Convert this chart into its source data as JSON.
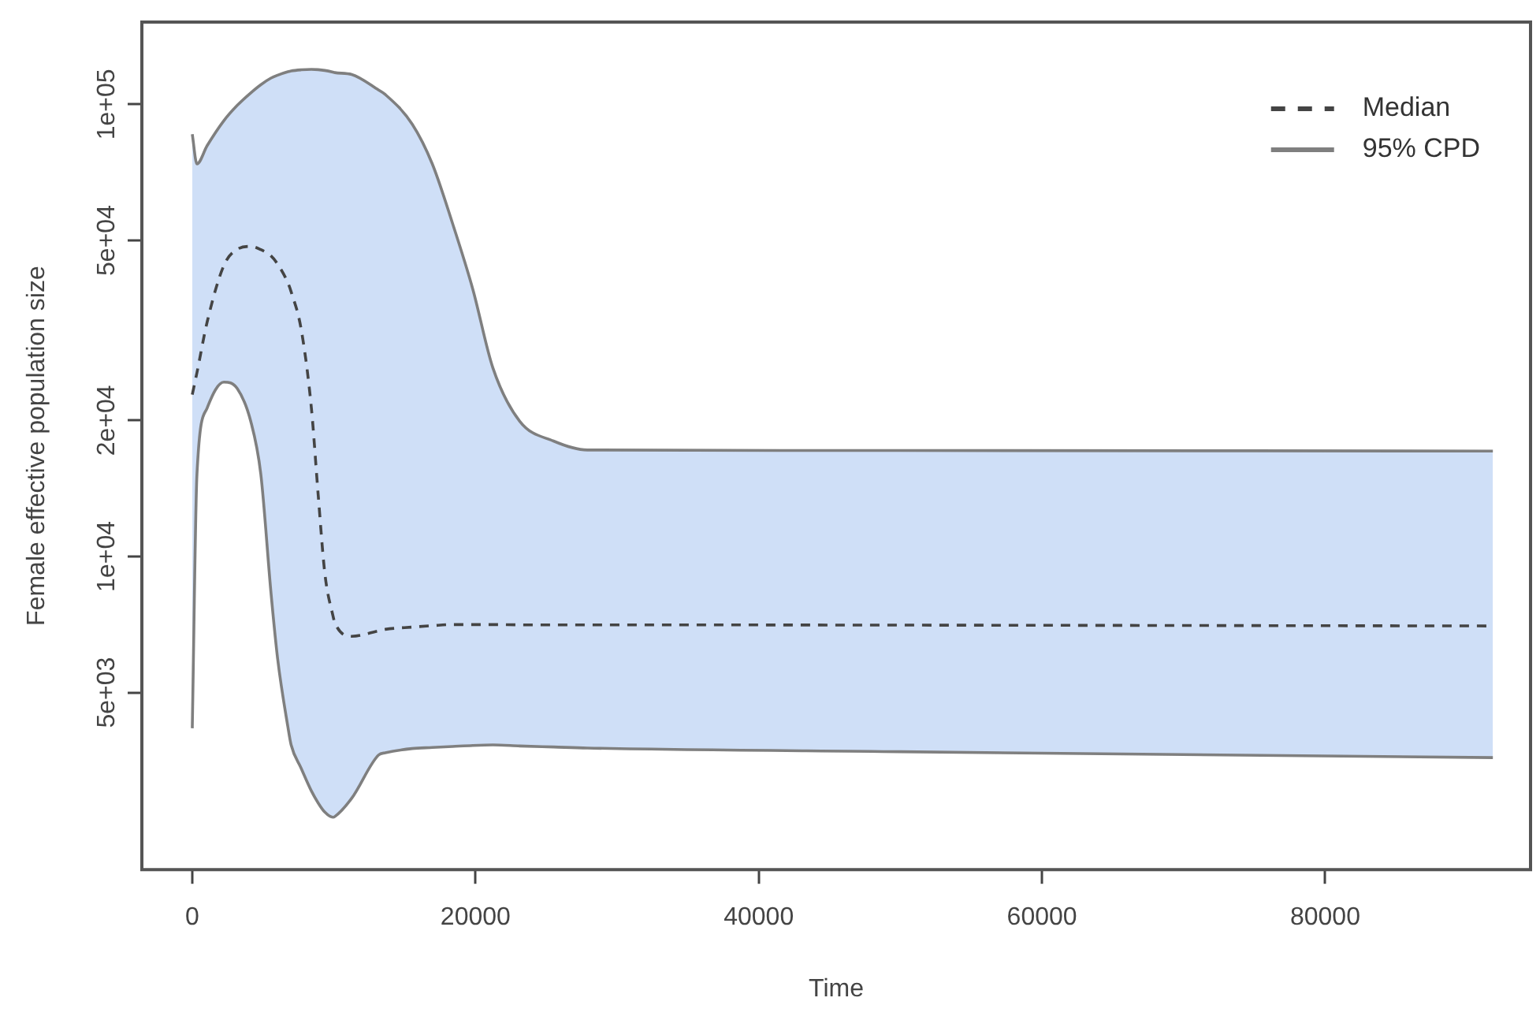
{
  "chart_data": {
    "type": "line",
    "xlabel": "Time",
    "ylabel": "Female effective population size",
    "log": "y",
    "grid": false,
    "legend": "top right",
    "xlim": [
      -3560,
      94500
    ],
    "xticks": [
      0,
      20000,
      40000,
      60000,
      80000
    ],
    "ylim": [
      2030,
      152000
    ],
    "yticks": [
      {
        "value": 5000,
        "label": "5e+03"
      },
      {
        "value": 10000,
        "label": "1e+04"
      },
      {
        "value": 20000,
        "label": "2e+04"
      },
      {
        "value": 50000,
        "label": "5e+04"
      },
      {
        "value": 100000,
        "label": "1e+05"
      }
    ],
    "series": [
      {
        "name": "Median",
        "line_style": "dashed",
        "color": "#444444",
        "x": [
          0,
          330,
          1050,
          2230,
          3180,
          4130,
          4840,
          5560,
          6030,
          6750,
          6980,
          7690,
          8410,
          8890,
          9360,
          9930,
          10070,
          11260,
          13160,
          13630,
          15530,
          16950,
          18380,
          19810,
          21230,
          23130,
          25510,
          27890,
          50000,
          91840
        ],
        "values": [
          22800,
          25500,
          33000,
          44000,
          47800,
          48500,
          47700,
          46200,
          44300,
          40300,
          38500,
          31800,
          21300,
          13700,
          9180,
          7400,
          7130,
          6660,
          6850,
          6900,
          6980,
          7030,
          7070,
          7070,
          7070,
          7060,
          7060,
          7060,
          7050,
          7020
        ],
        "upper": [
          85900,
          73800,
          81000,
          92000,
          99500,
          106000,
          110500,
          114300,
          116000,
          118000,
          118500,
          119200,
          119500,
          119300,
          118800,
          117800,
          117500,
          116400,
          107500,
          105100,
          90400,
          73800,
          54500,
          39000,
          26100,
          19900,
          18000,
          17200,
          17150,
          17100
        ],
        "lower": [
          4170,
          15200,
          21300,
          24300,
          23500,
          19900,
          15200,
          8300,
          5930,
          4200,
          3830,
          3400,
          3030,
          2850,
          2720,
          2650,
          2660,
          2920,
          3640,
          3680,
          3760,
          3780,
          3800,
          3820,
          3830,
          3810,
          3790,
          3770,
          3700,
          3590
        ]
      },
      {
        "name": "95% CPD",
        "line_style": "solid",
        "color": "#7f7f7f",
        "x": [
          0,
          330,
          1050,
          2230,
          3180,
          4130,
          4840,
          5560,
          6030,
          6750,
          6980,
          7690,
          8410,
          8890,
          9360,
          9930,
          10070,
          11260,
          13160,
          13630,
          15530,
          16950,
          18380,
          19810,
          21230,
          23130,
          25510,
          27890,
          50000,
          91840
        ],
        "values": [
          85900,
          73800,
          81000,
          92000,
          99500,
          106000,
          110500,
          114300,
          116000,
          118000,
          118500,
          119200,
          119500,
          119300,
          118800,
          117800,
          117500,
          116400,
          107500,
          105100,
          90400,
          73800,
          54500,
          39000,
          26100,
          19900,
          18000,
          17200,
          17150,
          17100
        ]
      },
      {
        "line_style": "solid",
        "color": "#7f7f7f",
        "x": [
          0,
          330,
          1050,
          2230,
          3180,
          4130,
          4840,
          5560,
          6030,
          6750,
          6980,
          7690,
          8410,
          8890,
          9360,
          9930,
          10070,
          11260,
          13160,
          13630,
          15530,
          16950,
          18380,
          19810,
          21230,
          23130,
          25510,
          27890,
          50000,
          91840
        ],
        "values": [
          4170,
          15200,
          21300,
          24300,
          23500,
          19900,
          15200,
          8300,
          5930,
          4200,
          3830,
          3400,
          3030,
          2850,
          2720,
          2650,
          2660,
          2920,
          3640,
          3680,
          3760,
          3780,
          3800,
          3820,
          3830,
          3810,
          3790,
          3770,
          3700,
          3590
        ]
      }
    ]
  }
}
